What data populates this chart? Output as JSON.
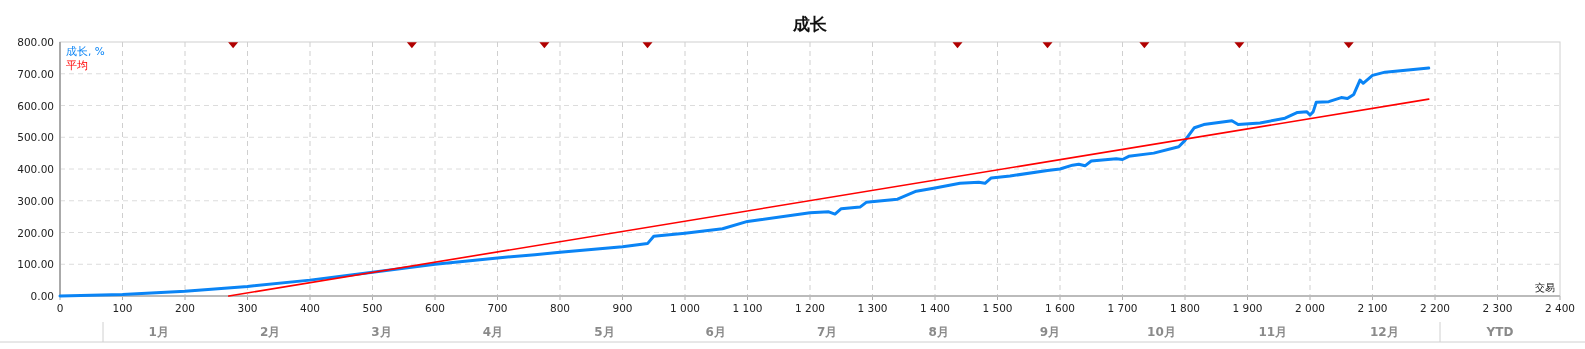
{
  "chart_data": {
    "type": "line",
    "title": "成长",
    "xlabel": "交易",
    "xlim": [
      0,
      2400
    ],
    "ylim": [
      0,
      800
    ],
    "xticks": [
      0,
      100,
      200,
      300,
      400,
      500,
      600,
      700,
      800,
      900,
      {
        "value": 1000,
        "label": "1 000"
      },
      {
        "value": 1100,
        "label": "1 100"
      },
      {
        "value": 1200,
        "label": "1 200"
      },
      {
        "value": 1300,
        "label": "1 300"
      },
      {
        "value": 1400,
        "label": "1 400"
      },
      {
        "value": 1500,
        "label": "1 500"
      },
      {
        "value": 1600,
        "label": "1 600"
      },
      {
        "value": 1700,
        "label": "1 700"
      },
      {
        "value": 1800,
        "label": "1 800"
      },
      {
        "value": 1900,
        "label": "1 900"
      },
      {
        "value": 2000,
        "label": "2 000"
      },
      {
        "value": 2100,
        "label": "2 100"
      },
      {
        "value": 2200,
        "label": "2 200"
      },
      {
        "value": 2300,
        "label": "2 300"
      },
      {
        "value": 2400,
        "label": "2 400"
      }
    ],
    "yticks": [
      {
        "value": 0,
        "label": "0.00"
      },
      {
        "value": 100,
        "label": "100.00"
      },
      {
        "value": 200,
        "label": "200.00"
      },
      {
        "value": 300,
        "label": "300.00"
      },
      {
        "value": 400,
        "label": "400.00"
      },
      {
        "value": 500,
        "label": "500.00"
      },
      {
        "value": 600,
        "label": "600.00"
      },
      {
        "value": 700,
        "label": "700.00"
      },
      {
        "value": 800,
        "label": "800.00"
      }
    ],
    "grid": true,
    "legend": "top left",
    "series": [
      {
        "name": "成长, %",
        "color": "#0a84f5",
        "x": [
          0,
          100,
          200,
          300,
          400,
          500,
          600,
          700,
          760,
          800,
          900,
          940,
          950,
          1000,
          1060,
          1100,
          1120,
          1200,
          1230,
          1240,
          1250,
          1280,
          1290,
          1340,
          1370,
          1400,
          1440,
          1470,
          1480,
          1490,
          1520,
          1580,
          1600,
          1620,
          1630,
          1640,
          1650,
          1690,
          1700,
          1710,
          1750,
          1790,
          1800,
          1815,
          1830,
          1860,
          1875,
          1885,
          1920,
          1960,
          1980,
          1995,
          2000,
          2005,
          2010,
          2030,
          2050,
          2060,
          2070,
          2080,
          2085,
          2100,
          2120,
          2190
        ],
        "values": [
          0,
          5,
          15,
          30,
          50,
          75,
          100,
          120,
          130,
          138,
          155,
          165,
          188,
          198,
          212,
          235,
          240,
          262,
          265,
          258,
          275,
          280,
          295,
          305,
          330,
          340,
          355,
          358,
          355,
          372,
          378,
          395,
          400,
          412,
          415,
          410,
          425,
          432,
          430,
          440,
          450,
          470,
          490,
          530,
          540,
          548,
          552,
          540,
          545,
          560,
          578,
          580,
          570,
          580,
          610,
          612,
          625,
          622,
          635,
          680,
          670,
          695,
          705,
          718
        ]
      },
      {
        "name": "平均",
        "color": "#ff0000",
        "x": [
          270,
          2190
        ],
        "values": [
          0,
          620
        ]
      },
      {
        "color": "#b00000",
        "type": "scatter",
        "marker": "triangle",
        "x": [
          277,
          563,
          775,
          940,
          1436,
          1580,
          1735,
          1887,
          2062
        ],
        "values": [
          790,
          790,
          790,
          790,
          790,
          790,
          790,
          790,
          790
        ]
      }
    ],
    "annotations": [
      "1月",
      "2月",
      "3月",
      "4月",
      "5月",
      "6月",
      "7月",
      "8月",
      "9月",
      "10月",
      "11月",
      "12月",
      "YTD"
    ]
  }
}
